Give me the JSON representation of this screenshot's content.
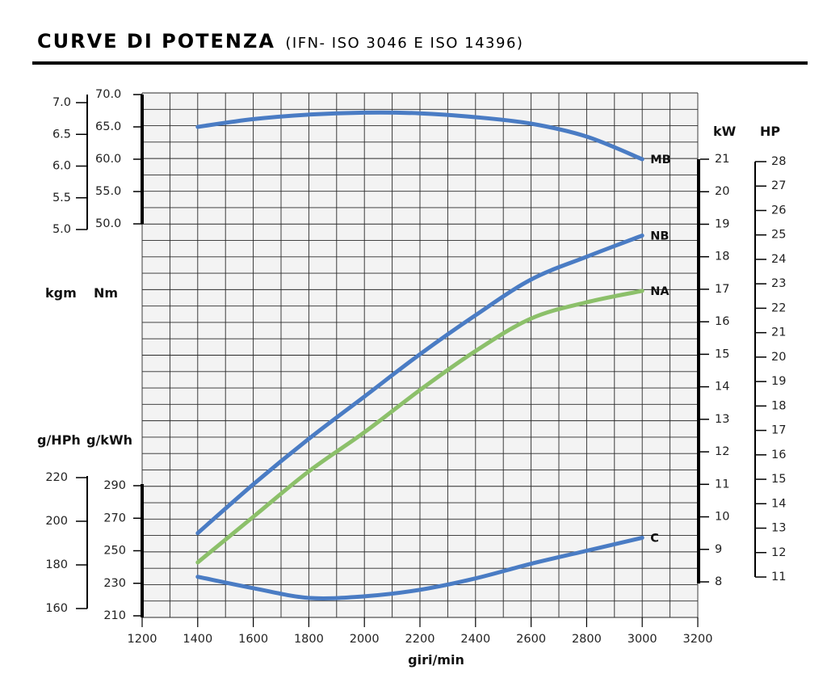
{
  "colors": {
    "blue": "#4a7cc4",
    "green": "#8cc06a",
    "grid": "#2a2a2a",
    "gridFill": "#f3f3f3",
    "axis": "#000000"
  },
  "chart_data": {
    "type": "line",
    "title": "CURVE DI POTENZA",
    "subtitle": "(IFN- ISO 3046 E ISO 14396)",
    "xlabel": "giri/min",
    "xlim": [
      1200,
      3200
    ],
    "x_ticks": [
      1200,
      1400,
      1600,
      1800,
      2000,
      2200,
      2400,
      2600,
      2800,
      3000,
      3200
    ],
    "grid": true,
    "axes": {
      "torque_kgm": {
        "label": "kgm",
        "ticks": [
          "7.0",
          "6.5",
          "6.0",
          "5.5",
          "5.0"
        ],
        "range": [
          5.0,
          7.0
        ]
      },
      "torque_nm": {
        "label": "Nm",
        "ticks": [
          "70.0",
          "65.0",
          "60.0",
          "55.0",
          "50.0"
        ],
        "range": [
          50.0,
          70.0
        ]
      },
      "consumption_ghph": {
        "label": "g/HPh",
        "ticks": [
          "220",
          "200",
          "180",
          "160"
        ],
        "range": [
          160,
          220
        ]
      },
      "consumption_gkwh": {
        "label": "g/kWh",
        "ticks": [
          "290",
          "270",
          "250",
          "230",
          "210"
        ],
        "range": [
          210,
          290
        ]
      },
      "power_kw": {
        "label": "kW",
        "ticks": [
          "21",
          "20",
          "19",
          "18",
          "17",
          "16",
          "15",
          "14",
          "13",
          "12",
          "11",
          "10",
          "9",
          "8"
        ],
        "range": [
          8,
          21
        ]
      },
      "power_hp": {
        "label": "HP",
        "ticks": [
          "28",
          "27",
          "26",
          "25",
          "24",
          "23",
          "22",
          "21",
          "20",
          "19",
          "18",
          "17",
          "16",
          "15",
          "14",
          "13",
          "12",
          "11"
        ],
        "range": [
          11,
          28
        ]
      }
    },
    "series": [
      {
        "name": "MB",
        "axis": "torque_nm",
        "color": "#4a7cc4",
        "x": [
          1400,
          1600,
          1800,
          2000,
          2200,
          2400,
          2600,
          2800,
          3000
        ],
        "y": [
          65.0,
          66.2,
          66.9,
          67.2,
          67.1,
          66.5,
          65.5,
          63.5,
          60.0
        ]
      },
      {
        "name": "NB",
        "axis": "power_kw",
        "color": "#4a7cc4",
        "x": [
          1400,
          1600,
          1800,
          2000,
          2200,
          2400,
          2600,
          2800,
          3000
        ],
        "y": [
          9.5,
          11.0,
          12.4,
          13.7,
          15.0,
          16.2,
          17.3,
          18.0,
          18.65
        ]
      },
      {
        "name": "NA",
        "axis": "power_kw",
        "color": "#8cc06a",
        "x": [
          1400,
          1600,
          1800,
          2000,
          2200,
          2400,
          2600,
          2800,
          3000
        ],
        "y": [
          8.6,
          10.0,
          11.4,
          12.6,
          13.9,
          15.1,
          16.1,
          16.6,
          16.95
        ]
      },
      {
        "name": "C",
        "axis": "consumption_gkwh",
        "color": "#4a7cc4",
        "x": [
          1400,
          1600,
          1800,
          2000,
          2200,
          2400,
          2600,
          2800,
          3000
        ],
        "y": [
          234,
          227,
          221,
          222,
          226,
          233,
          242,
          250,
          258
        ]
      }
    ]
  }
}
